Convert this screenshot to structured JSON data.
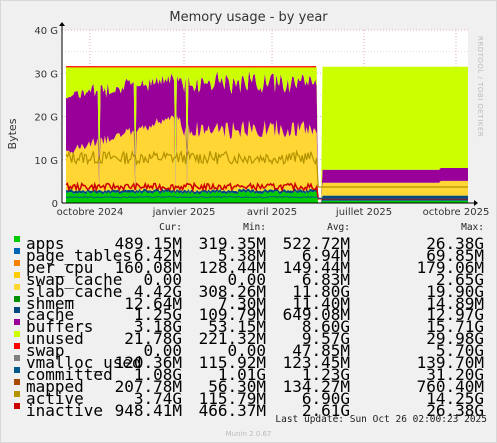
{
  "chart_data": {
    "type": "area",
    "title": "Memory usage - by year",
    "ylabel": "Bytes",
    "side_text": "RRDTOOL / TOBI OETIKER",
    "y_ticks": [
      "0",
      "10 G",
      "20 G",
      "30 G",
      "40 G"
    ],
    "ylim": [
      0,
      40
    ],
    "x_ticks": [
      "octobre 2024",
      "janvier 2025",
      "avril 2025",
      "juillet 2025",
      "octobre 2025"
    ],
    "grid": true,
    "columns": [
      "Cur:",
      "Min:",
      "Avg:",
      "Max:"
    ],
    "legend": [
      {
        "name": "apps",
        "color": "#00cc00",
        "cur": "489.15M",
        "min": "319.35M",
        "avg": "522.72M",
        "max": "26.38G"
      },
      {
        "name": "page_tables",
        "color": "#0066b3",
        "cur": "6.42M",
        "min": "5.38M",
        "avg": "6.94M",
        "max": "69.85M"
      },
      {
        "name": "per_cpu",
        "color": "#ff8000",
        "cur": "160.08M",
        "min": "128.44M",
        "avg": "149.44M",
        "max": "179.06M"
      },
      {
        "name": "swap_cache",
        "color": "#ffcc00",
        "cur": "0.00",
        "min": "0.00",
        "avg": "6.83M",
        "max": "2.65G"
      },
      {
        "name": "slab_cache",
        "color": "#ffd633",
        "cur": "4.42G",
        "min": "308.26M",
        "avg": "11.80G",
        "max": "19.90G"
      },
      {
        "name": "shmem",
        "color": "#008f00",
        "cur": "12.64M",
        "min": "7.30M",
        "avg": "11.40M",
        "max": "14.89M"
      },
      {
        "name": "cache",
        "color": "#00487d",
        "cur": "1.25G",
        "min": "109.79M",
        "avg": "649.08M",
        "max": "12.97G"
      },
      {
        "name": "buffers",
        "color": "#990099",
        "cur": "3.18G",
        "min": "53.15M",
        "avg": "8.60G",
        "max": "15.71G"
      },
      {
        "name": "unused",
        "color": "#ccff00",
        "cur": "21.78G",
        "min": "221.32M",
        "avg": "9.57G",
        "max": "29.98G"
      },
      {
        "name": "swap",
        "color": "#ff0000",
        "cur": "0.00",
        "min": "0.00",
        "avg": "47.85M",
        "max": "5.70G"
      },
      {
        "name": "vmalloc_used",
        "color": "#808080",
        "cur": "120.36M",
        "min": "115.92M",
        "avg": "123.45M",
        "max": "139.70M"
      },
      {
        "name": "committed",
        "color": "#005a8c",
        "cur": "1.08G",
        "min": "1.01G",
        "avg": "1.23G",
        "max": "31.20G"
      },
      {
        "name": "mapped",
        "color": "#a64b00",
        "cur": "207.78M",
        "min": "56.30M",
        "avg": "134.27M",
        "max": "760.40M"
      },
      {
        "name": "active",
        "color": "#b39300",
        "cur": "3.74G",
        "min": "115.79M",
        "avg": "6.90G",
        "max": "14.25G"
      },
      {
        "name": "inactive",
        "color": "#cc0000",
        "cur": "948.41M",
        "min": "466.37M",
        "avg": "2.61G",
        "max": "26.38G"
      }
    ],
    "last_update": "Last update: Sun Oct 26 02:00:23 2025",
    "footer": "Munin 2.0.67"
  }
}
